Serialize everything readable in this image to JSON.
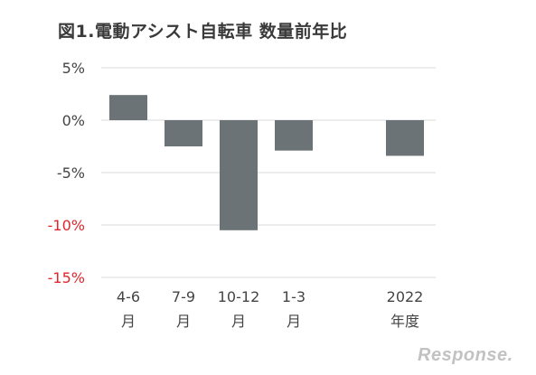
{
  "title": "図1.電動アシスト自転車 数量前年比",
  "watermark": "Response.",
  "colors": {
    "bar": "#6c7376",
    "grid": "#d9d9d9",
    "positive_tick": "#444444",
    "negative_tick": "#e0262b"
  },
  "chart_data": {
    "type": "bar",
    "categories": [
      {
        "line1": "4-6",
        "line2": "月"
      },
      {
        "line1": "7-9",
        "line2": "月"
      },
      {
        "line1": "10-12",
        "line2": "月"
      },
      {
        "line1": "1-3",
        "line2": "月"
      },
      {
        "line1": "",
        "line2": ""
      },
      {
        "line1": "2022",
        "line2": "年度"
      }
    ],
    "values": [
      2.4,
      -2.5,
      -10.5,
      -2.9,
      null,
      -3.4
    ],
    "ylim": [
      -15,
      5
    ],
    "yticks": [
      {
        "value": 5,
        "label": "5%"
      },
      {
        "value": 0,
        "label": "0%"
      },
      {
        "value": -5,
        "label": "-5%"
      },
      {
        "value": -10,
        "label": "-10%"
      },
      {
        "value": -15,
        "label": "-15%"
      }
    ],
    "grid": true,
    "legend": "none"
  }
}
